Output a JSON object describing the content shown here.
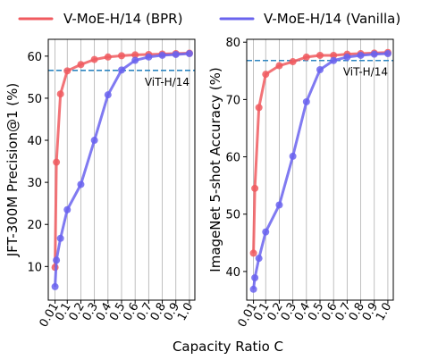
{
  "legend": [
    {
      "label": "V-MoE-H/14 (BPR)",
      "color": "#f05a5f"
    },
    {
      "label": "V-MoE-H/14 (Vanilla)",
      "color": "#6a63ee"
    }
  ],
  "xlabel": "Capacity Ratio C",
  "chart_data": [
    {
      "type": "line",
      "ylabel": "JFT-300M Precision@1 (%)",
      "x": [
        0.01,
        0.02,
        0.05,
        0.1,
        0.2,
        0.3,
        0.4,
        0.5,
        0.6,
        0.7,
        0.8,
        0.9,
        1.0
      ],
      "x_tick_labels": [
        "0.01",
        "0.1",
        "0.2",
        "0.3",
        "0.4",
        "0.5",
        "0.6",
        "0.7",
        "0.8",
        "0.9",
        "1.0"
      ],
      "x_tick_values": [
        0.01,
        0.1,
        0.2,
        0.3,
        0.4,
        0.5,
        0.6,
        0.7,
        0.8,
        0.9,
        1.0
      ],
      "series": [
        {
          "name": "V-MoE-H/14 (BPR)",
          "color": "#f05a5f",
          "values": [
            9.8,
            34.8,
            51.0,
            56.5,
            58.0,
            59.2,
            59.8,
            60.1,
            60.3,
            60.4,
            60.5,
            60.6,
            60.7
          ]
        },
        {
          "name": "V-MoE-H/14 (Vanilla)",
          "color": "#6a63ee",
          "values": [
            5.2,
            11.5,
            16.7,
            23.5,
            29.5,
            40.0,
            50.8,
            56.7,
            59.0,
            59.8,
            60.2,
            60.4,
            60.6
          ]
        }
      ],
      "reference": {
        "label": "ViT-H/14",
        "value": 56.6,
        "color": "#2e86c1"
      },
      "ylim": [
        2,
        64
      ],
      "yticks": [
        10,
        20,
        30,
        40,
        50,
        60
      ],
      "grid": "vertical"
    },
    {
      "type": "line",
      "ylabel": "ImageNet 5-shot Accuracy (%)",
      "x": [
        0.01,
        0.02,
        0.05,
        0.1,
        0.2,
        0.3,
        0.4,
        0.5,
        0.6,
        0.7,
        0.8,
        0.9,
        1.0
      ],
      "x_tick_labels": [
        "0.01",
        "0.1",
        "0.2",
        "0.3",
        "0.4",
        "0.5",
        "0.6",
        "0.7",
        "0.8",
        "0.9",
        "1.0"
      ],
      "x_tick_values": [
        0.01,
        0.1,
        0.2,
        0.3,
        0.4,
        0.5,
        0.6,
        0.7,
        0.8,
        0.9,
        1.0
      ],
      "series": [
        {
          "name": "V-MoE-H/14 (BPR)",
          "color": "#f05a5f",
          "values": [
            43.2,
            54.5,
            68.6,
            74.4,
            75.9,
            76.6,
            77.4,
            77.7,
            77.7,
            77.9,
            78.0,
            78.1,
            78.2
          ]
        },
        {
          "name": "V-MoE-H/14 (Vanilla)",
          "color": "#6a63ee",
          "values": [
            36.9,
            38.9,
            42.3,
            46.9,
            51.6,
            60.1,
            69.6,
            75.2,
            76.8,
            77.4,
            77.7,
            77.9,
            78.0
          ]
        }
      ],
      "reference": {
        "label": "ViT-H/14",
        "value": 76.8,
        "color": "#2e86c1"
      },
      "ylim": [
        35,
        80.5
      ],
      "yticks": [
        40,
        50,
        60,
        70,
        80
      ],
      "grid": "vertical"
    }
  ]
}
